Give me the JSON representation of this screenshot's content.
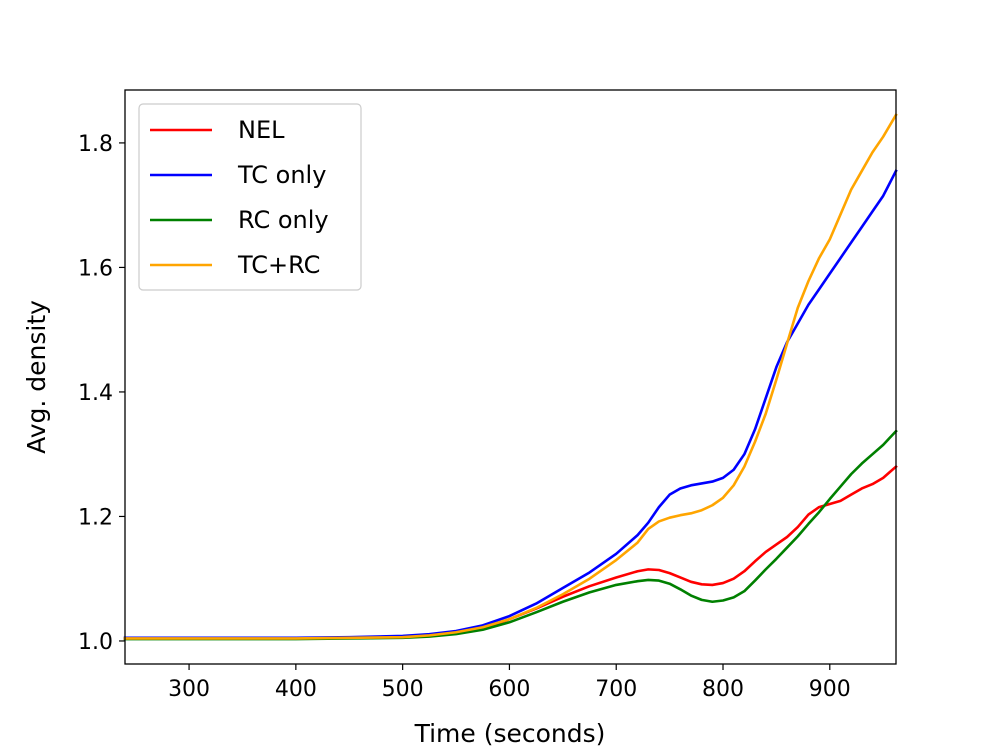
{
  "chart_data": {
    "type": "line",
    "title": "",
    "xlabel": "Time (seconds)",
    "ylabel": "Avg. density",
    "xlim": [
      240,
      962
    ],
    "ylim": [
      0.963,
      1.885
    ],
    "xticks": [
      300,
      400,
      500,
      600,
      700,
      800,
      900
    ],
    "yticks": [
      1.0,
      1.2,
      1.4,
      1.6,
      1.8
    ],
    "xtick_labels": [
      "300",
      "400",
      "500",
      "600",
      "700",
      "800",
      "900"
    ],
    "ytick_labels": [
      "1.0",
      "1.2",
      "1.4",
      "1.6",
      "1.8"
    ],
    "grid": false,
    "legend_position": "top-left",
    "x": [
      240,
      300,
      400,
      450,
      500,
      525,
      550,
      575,
      600,
      625,
      650,
      675,
      700,
      720,
      730,
      740,
      750,
      760,
      770,
      780,
      790,
      800,
      810,
      820,
      830,
      840,
      850,
      860,
      870,
      880,
      890,
      900,
      910,
      920,
      930,
      940,
      950,
      962
    ],
    "series": [
      {
        "name": "NEL",
        "color": "#ff0000",
        "values": [
          1.004,
          1.004,
          1.004,
          1.005,
          1.006,
          1.008,
          1.012,
          1.02,
          1.035,
          1.052,
          1.071,
          1.088,
          1.102,
          1.112,
          1.115,
          1.114,
          1.109,
          1.102,
          1.095,
          1.091,
          1.09,
          1.093,
          1.1,
          1.112,
          1.128,
          1.143,
          1.155,
          1.167,
          1.183,
          1.203,
          1.215,
          1.22,
          1.225,
          1.235,
          1.245,
          1.252,
          1.262,
          1.28
        ]
      },
      {
        "name": "TC only",
        "color": "#0000ff",
        "values": [
          1.005,
          1.005,
          1.005,
          1.006,
          1.008,
          1.011,
          1.016,
          1.025,
          1.04,
          1.06,
          1.085,
          1.11,
          1.14,
          1.17,
          1.19,
          1.215,
          1.235,
          1.245,
          1.25,
          1.253,
          1.256,
          1.262,
          1.275,
          1.3,
          1.34,
          1.39,
          1.44,
          1.48,
          1.51,
          1.54,
          1.565,
          1.59,
          1.615,
          1.64,
          1.665,
          1.69,
          1.715,
          1.755
        ]
      },
      {
        "name": "RC only",
        "color": "#008000",
        "values": [
          1.003,
          1.003,
          1.003,
          1.004,
          1.005,
          1.007,
          1.011,
          1.018,
          1.03,
          1.046,
          1.063,
          1.078,
          1.09,
          1.096,
          1.098,
          1.097,
          1.092,
          1.083,
          1.073,
          1.066,
          1.063,
          1.065,
          1.07,
          1.08,
          1.097,
          1.115,
          1.132,
          1.15,
          1.168,
          1.188,
          1.207,
          1.228,
          1.248,
          1.268,
          1.285,
          1.3,
          1.315,
          1.337
        ]
      },
      {
        "name": "TC+RC",
        "color": "#ffa500",
        "values": [
          1.004,
          1.004,
          1.004,
          1.005,
          1.006,
          1.009,
          1.014,
          1.022,
          1.035,
          1.053,
          1.075,
          1.1,
          1.13,
          1.158,
          1.18,
          1.192,
          1.198,
          1.202,
          1.205,
          1.21,
          1.218,
          1.23,
          1.25,
          1.28,
          1.32,
          1.365,
          1.42,
          1.478,
          1.535,
          1.578,
          1.615,
          1.645,
          1.685,
          1.725,
          1.755,
          1.785,
          1.81,
          1.845
        ]
      }
    ]
  }
}
